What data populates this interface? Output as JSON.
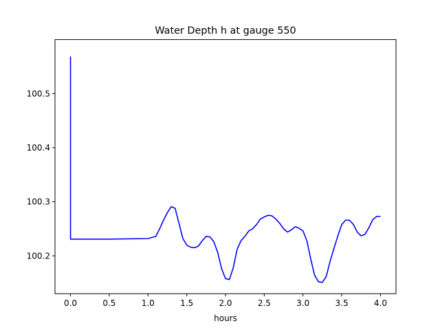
{
  "chart_data": {
    "type": "line",
    "title": "Water Depth h at gauge 550",
    "xlabel": "hours",
    "ylabel": "",
    "xlim": [
      -0.2,
      4.2
    ],
    "ylim": [
      100.13,
      100.6
    ],
    "xticks": [
      0.0,
      0.5,
      1.0,
      1.5,
      2.0,
      2.5,
      3.0,
      3.5,
      4.0
    ],
    "xtick_labels": [
      "0.0",
      "0.5",
      "1.0",
      "1.5",
      "2.0",
      "2.5",
      "3.0",
      "3.5",
      "4.0"
    ],
    "yticks": [
      100.2,
      100.3,
      100.4,
      100.5
    ],
    "ytick_labels": [
      "100.2",
      "100.3",
      "100.4",
      "100.5"
    ],
    "grid": false,
    "legend": "none",
    "series": [
      {
        "color": "#0000ff",
        "x": [
          0.0,
          0.0,
          0.0,
          0.5,
          1.0,
          1.1,
          1.15,
          1.2,
          1.25,
          1.3,
          1.35,
          1.4,
          1.45,
          1.5,
          1.55,
          1.6,
          1.65,
          1.7,
          1.75,
          1.8,
          1.85,
          1.9,
          1.95,
          2.0,
          2.05,
          2.1,
          2.15,
          2.2,
          2.25,
          2.3,
          2.35,
          2.4,
          2.45,
          2.5,
          2.55,
          2.6,
          2.65,
          2.7,
          2.75,
          2.8,
          2.85,
          2.9,
          2.95,
          3.0,
          3.05,
          3.1,
          3.15,
          3.2,
          3.25,
          3.3,
          3.35,
          3.4,
          3.45,
          3.5,
          3.55,
          3.6,
          3.65,
          3.7,
          3.75,
          3.8,
          3.85,
          3.9,
          3.95,
          4.0
        ],
        "y": [
          100.23,
          100.568,
          100.231,
          100.231,
          100.232,
          100.236,
          100.25,
          100.266,
          100.28,
          100.291,
          100.288,
          100.26,
          100.232,
          100.22,
          100.216,
          100.215,
          100.218,
          100.228,
          100.236,
          100.235,
          100.226,
          100.206,
          100.176,
          100.158,
          100.156,
          100.178,
          100.212,
          100.228,
          100.236,
          100.246,
          100.25,
          100.258,
          100.268,
          100.272,
          100.275,
          100.274,
          100.268,
          100.26,
          100.25,
          100.244,
          100.248,
          100.254,
          100.251,
          100.246,
          100.228,
          100.194,
          100.164,
          100.152,
          100.151,
          100.162,
          100.19,
          100.214,
          100.237,
          100.258,
          100.266,
          100.266,
          100.258,
          100.244,
          100.237,
          100.24,
          100.252,
          100.267,
          100.273,
          100.273
        ]
      }
    ]
  }
}
